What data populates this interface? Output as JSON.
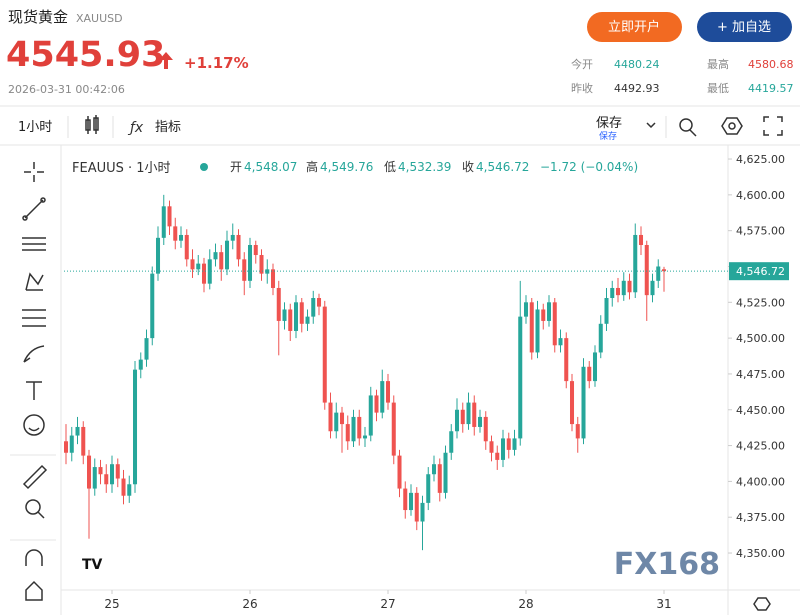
{
  "header": {
    "name": "现货黄金",
    "symbol": "XAUUSD",
    "price": "4545.93",
    "change": "+1.17%",
    "time": "2026-03-31 00:42:06",
    "open_account": "立即开户",
    "add_watch": "+ 加自选",
    "stats": [
      {
        "label": "今开",
        "value": "4480.24"
      },
      {
        "label": "最高",
        "value": "4580.68"
      },
      {
        "label": "昨收",
        "value": "4492.93"
      },
      {
        "label": "最低",
        "value": "4419.57"
      }
    ]
  },
  "toolbar": {
    "interval": "1小时",
    "indicators": "指标",
    "save": "保存",
    "save_sub": "保存"
  },
  "legend": {
    "symbol": "FEAUUS · 1小时",
    "open_label": "开",
    "open": "4,548.07",
    "high_label": "高",
    "high": "4,549.76",
    "low_label": "低",
    "low": "4,532.39",
    "close_label": "收",
    "close": "4,546.72",
    "change": "−1.72 (−0.04%)"
  },
  "watermark": "FX168",
  "chart_data": {
    "type": "candlestick",
    "up_color": "#26a69a",
    "down_color": "#ef5350",
    "xlim": [
      -0.35,
      115.13
    ],
    "xticks": [
      {
        "value": 8,
        "label": "25"
      },
      {
        "value": 32,
        "label": "26"
      },
      {
        "value": 56,
        "label": "27"
      },
      {
        "value": 80,
        "label": "28"
      },
      {
        "value": 104,
        "label": "31"
      }
    ],
    "ylim": [
      4324.2,
      4632.7
    ],
    "yticks": [
      {
        "value": 4350,
        "label": "4,350.00"
      },
      {
        "value": 4375,
        "label": "4,375.00"
      },
      {
        "value": 4400,
        "label": "4,400.00"
      },
      {
        "value": 4425,
        "label": "4,425.00"
      },
      {
        "value": 4450,
        "label": "4,450.00"
      },
      {
        "value": 4475,
        "label": "4,475.00"
      },
      {
        "value": 4500,
        "label": "4,500.00"
      },
      {
        "value": 4525,
        "label": "4,525.00"
      },
      {
        "value": 4550,
        "label": "4,550.00"
      },
      {
        "value": 4575,
        "label": "4,575.00"
      },
      {
        "value": 4600,
        "label": "4,600.00"
      },
      {
        "value": 4625,
        "label": "4,625.00"
      }
    ],
    "last_price": {
      "value": 4546.72,
      "label": "4,546.72"
    },
    "open": [
      4428,
      4420,
      4432,
      4438,
      4418,
      4395,
      4410,
      4405,
      4398,
      4412,
      4402,
      4390,
      4398,
      4478,
      4485,
      4500,
      4545,
      4570,
      4592,
      4578,
      4568,
      4572,
      4555,
      4548,
      4552,
      4538,
      4555,
      4560,
      4548,
      4568,
      4572,
      4555,
      4540,
      4565,
      4558,
      4545,
      4548,
      4535,
      4512,
      4520,
      4505,
      4525,
      4510,
      4515,
      4528,
      4522,
      4455,
      4435,
      4448,
      4440,
      4428,
      4445,
      4430,
      4432,
      4460,
      4448,
      4470,
      4455,
      4418,
      4395,
      4380,
      4392,
      4372,
      4385,
      4405,
      4412,
      4392,
      4420,
      4435,
      4450,
      4440,
      4455,
      4438,
      4445,
      4428,
      4420,
      4415,
      4430,
      4422,
      4430,
      4515,
      4525,
      4490,
      4520,
      4512,
      4525,
      4495,
      4500,
      4470,
      4440,
      4430,
      4480,
      4470,
      4490,
      4510,
      4528,
      4535,
      4530,
      4540,
      4532,
      4572,
      4565,
      4530,
      4540,
      4548.07
    ],
    "high": [
      4440,
      4438,
      4445,
      4442,
      4422,
      4416,
      4415,
      4412,
      4418,
      4416,
      4408,
      4404,
      4484,
      4490,
      4506,
      4550,
      4578,
      4600,
      4596,
      4584,
      4578,
      4576,
      4562,
      4558,
      4556,
      4562,
      4566,
      4565,
      4575,
      4580,
      4576,
      4560,
      4570,
      4568,
      4562,
      4555,
      4552,
      4540,
      4525,
      4524,
      4530,
      4528,
      4520,
      4533,
      4531,
      4526,
      4462,
      4455,
      4452,
      4446,
      4450,
      4450,
      4438,
      4466,
      4464,
      4478,
      4475,
      4460,
      4422,
      4400,
      4398,
      4396,
      4390,
      4410,
      4418,
      4416,
      4425,
      4440,
      4458,
      4455,
      4462,
      4460,
      4450,
      4449,
      4432,
      4425,
      4436,
      4434,
      4436,
      4540,
      4530,
      4528,
      4526,
      4524,
      4530,
      4528,
      4506,
      4504,
      4475,
      4445,
      4486,
      4484,
      4495,
      4516,
      4535,
      4540,
      4542,
      4546,
      4545,
      4580,
      4578,
      4568,
      4545,
      4555,
      4549.76
    ],
    "low": [
      4412,
      4414,
      4426,
      4412,
      4360,
      4390,
      4398,
      4392,
      4392,
      4396,
      4384,
      4385,
      4392,
      4472,
      4480,
      4495,
      4540,
      4565,
      4572,
      4562,
      4563,
      4550,
      4542,
      4544,
      4532,
      4534,
      4550,
      4540,
      4544,
      4562,
      4550,
      4530,
      4535,
      4552,
      4540,
      4538,
      4530,
      4488,
      4506,
      4498,
      4500,
      4504,
      4505,
      4510,
      4516,
      4450,
      4430,
      4430,
      4420,
      4422,
      4424,
      4425,
      4424,
      4428,
      4442,
      4444,
      4450,
      4412,
      4389,
      4374,
      4376,
      4366,
      4352,
      4380,
      4400,
      4386,
      4388,
      4415,
      4430,
      4434,
      4436,
      4432,
      4434,
      4422,
      4414,
      4408,
      4410,
      4416,
      4418,
      4425,
      4510,
      4485,
      4486,
      4506,
      4508,
      4490,
      4490,
      4465,
      4435,
      4420,
      4426,
      4465,
      4466,
      4486,
      4505,
      4522,
      4525,
      4526,
      4527,
      4528,
      4558,
      4512,
      4525,
      4535,
      4532.39
    ],
    "close": [
      4420,
      4432,
      4438,
      4418,
      4395,
      4410,
      4405,
      4398,
      4412,
      4402,
      4390,
      4398,
      4478,
      4485,
      4500,
      4545,
      4570,
      4592,
      4578,
      4568,
      4572,
      4555,
      4548,
      4552,
      4538,
      4555,
      4560,
      4548,
      4568,
      4572,
      4555,
      4540,
      4565,
      4558,
      4545,
      4548,
      4535,
      4512,
      4520,
      4505,
      4525,
      4510,
      4515,
      4528,
      4522,
      4455,
      4435,
      4448,
      4440,
      4428,
      4445,
      4430,
      4432,
      4460,
      4448,
      4470,
      4455,
      4418,
      4395,
      4380,
      4392,
      4372,
      4385,
      4405,
      4412,
      4392,
      4420,
      4435,
      4450,
      4440,
      4455,
      4438,
      4445,
      4428,
      4420,
      4415,
      4430,
      4422,
      4430,
      4515,
      4525,
      4490,
      4520,
      4512,
      4525,
      4495,
      4500,
      4470,
      4440,
      4430,
      4480,
      4470,
      4490,
      4510,
      4528,
      4535,
      4530,
      4540,
      4532,
      4572,
      4565,
      4530,
      4540,
      4550,
      4546.72
    ]
  }
}
